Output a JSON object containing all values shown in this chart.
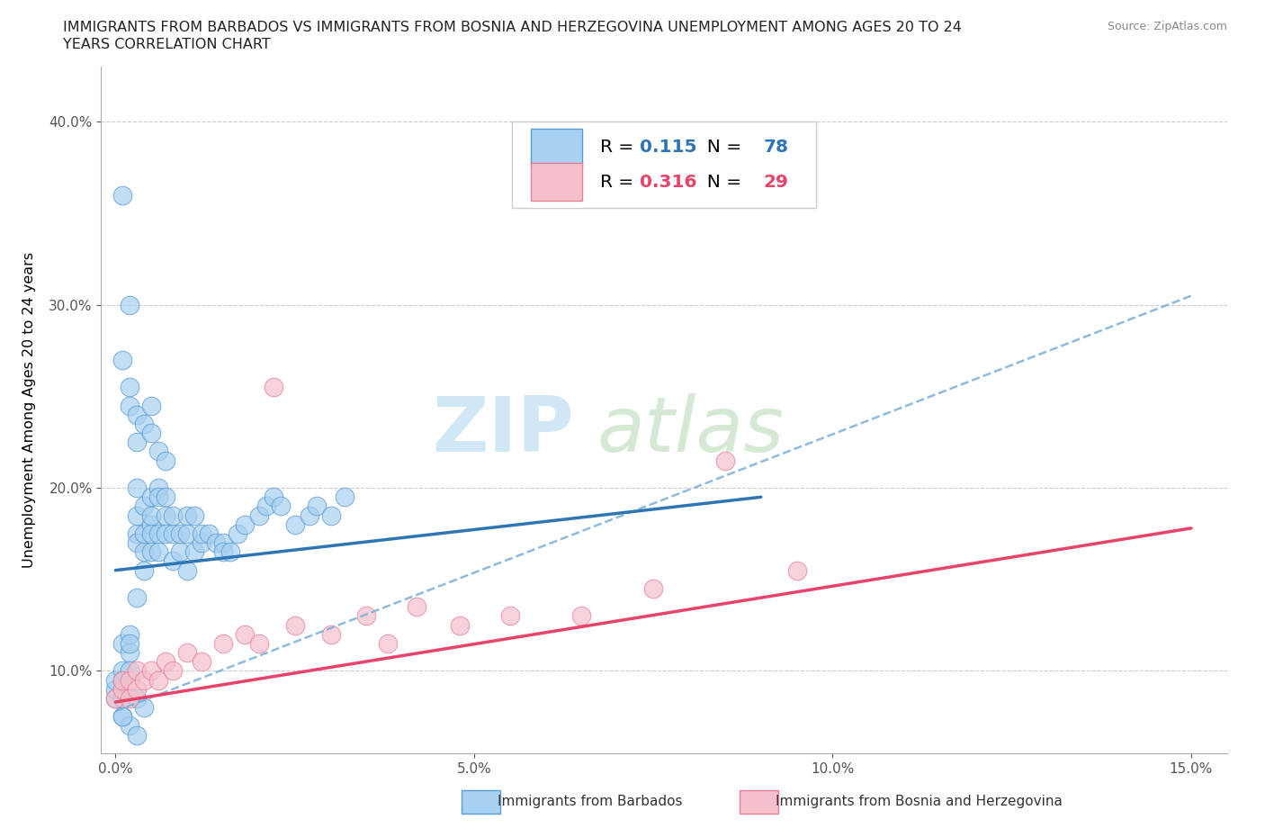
{
  "title_line1": "IMMIGRANTS FROM BARBADOS VS IMMIGRANTS FROM BOSNIA AND HERZEGOVINA UNEMPLOYMENT AMONG AGES 20 TO 24",
  "title_line2": "YEARS CORRELATION CHART",
  "source": "Source: ZipAtlas.com",
  "ylabel": "Unemployment Among Ages 20 to 24 years",
  "legend1_label": "Immigrants from Barbados",
  "legend2_label": "Immigrants from Bosnia and Herzegovina",
  "r1": "0.115",
  "n1": "78",
  "r2": "0.316",
  "n2": "29",
  "xlim": [
    -0.002,
    0.155
  ],
  "ylim": [
    0.055,
    0.43
  ],
  "xticks": [
    0.0,
    0.05,
    0.1,
    0.15
  ],
  "xtick_labels": [
    "0.0%",
    "5.0%",
    "10.0%",
    "15.0%"
  ],
  "yticks": [
    0.1,
    0.2,
    0.3,
    0.4
  ],
  "ytick_labels": [
    "10.0%",
    "20.0%",
    "30.0%",
    "40.0%"
  ],
  "color_blue_fill": "#a8d0f0",
  "color_blue_edge": "#5b9bd5",
  "color_blue_line": "#2e75b6",
  "color_pink_fill": "#f5c0cc",
  "color_pink_edge": "#e88096",
  "color_pink_line": "#e8436a",
  "color_dashed": "#7ab0d8",
  "blue_line_x0": 0.0,
  "blue_line_y0": 0.155,
  "blue_line_x1": 0.09,
  "blue_line_y1": 0.195,
  "pink_line_x0": 0.0,
  "pink_line_y0": 0.083,
  "pink_line_x1": 0.15,
  "pink_line_y1": 0.178,
  "dash_line_x0": 0.0,
  "dash_line_y0": 0.078,
  "dash_line_x1": 0.15,
  "dash_line_y1": 0.305,
  "barbados_x": [
    0.0,
    0.0,
    0.0,
    0.001,
    0.001,
    0.001,
    0.001,
    0.002,
    0.002,
    0.002,
    0.002,
    0.003,
    0.003,
    0.003,
    0.003,
    0.003,
    0.004,
    0.004,
    0.004,
    0.004,
    0.005,
    0.005,
    0.005,
    0.005,
    0.005,
    0.006,
    0.006,
    0.006,
    0.006,
    0.007,
    0.007,
    0.007,
    0.008,
    0.008,
    0.008,
    0.009,
    0.009,
    0.01,
    0.01,
    0.01,
    0.011,
    0.011,
    0.012,
    0.012,
    0.013,
    0.014,
    0.015,
    0.015,
    0.016,
    0.017,
    0.018,
    0.02,
    0.021,
    0.022,
    0.023,
    0.025,
    0.027,
    0.028,
    0.03,
    0.032,
    0.001,
    0.002,
    0.002,
    0.003,
    0.003,
    0.004,
    0.005,
    0.005,
    0.006,
    0.007,
    0.001,
    0.002,
    0.003,
    0.004,
    0.001,
    0.002,
    0.003,
    0.001
  ],
  "barbados_y": [
    0.085,
    0.09,
    0.095,
    0.1,
    0.095,
    0.115,
    0.085,
    0.12,
    0.11,
    0.115,
    0.1,
    0.14,
    0.175,
    0.185,
    0.2,
    0.17,
    0.155,
    0.165,
    0.19,
    0.175,
    0.18,
    0.175,
    0.195,
    0.185,
    0.165,
    0.2,
    0.165,
    0.195,
    0.175,
    0.185,
    0.195,
    0.175,
    0.175,
    0.185,
    0.16,
    0.165,
    0.175,
    0.155,
    0.185,
    0.175,
    0.165,
    0.185,
    0.17,
    0.175,
    0.175,
    0.17,
    0.17,
    0.165,
    0.165,
    0.175,
    0.18,
    0.185,
    0.19,
    0.195,
    0.19,
    0.18,
    0.185,
    0.19,
    0.185,
    0.195,
    0.27,
    0.255,
    0.245,
    0.225,
    0.24,
    0.235,
    0.245,
    0.23,
    0.22,
    0.215,
    0.36,
    0.3,
    0.085,
    0.08,
    0.075,
    0.07,
    0.065,
    0.075
  ],
  "bosnia_x": [
    0.0,
    0.001,
    0.001,
    0.002,
    0.002,
    0.003,
    0.003,
    0.004,
    0.005,
    0.006,
    0.007,
    0.008,
    0.01,
    0.012,
    0.015,
    0.018,
    0.02,
    0.022,
    0.025,
    0.03,
    0.035,
    0.038,
    0.042,
    0.048,
    0.055,
    0.065,
    0.075,
    0.085,
    0.095
  ],
  "bosnia_y": [
    0.085,
    0.09,
    0.095,
    0.085,
    0.095,
    0.09,
    0.1,
    0.095,
    0.1,
    0.095,
    0.105,
    0.1,
    0.11,
    0.105,
    0.115,
    0.12,
    0.115,
    0.255,
    0.125,
    0.12,
    0.13,
    0.115,
    0.135,
    0.125,
    0.13,
    0.13,
    0.145,
    0.215,
    0.155
  ]
}
